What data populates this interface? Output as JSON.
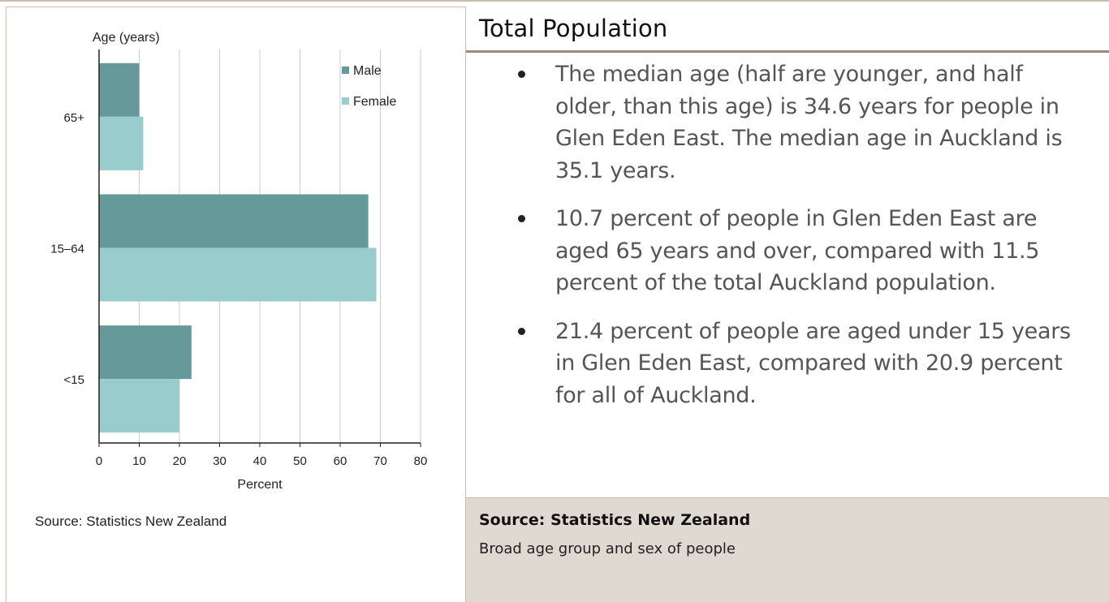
{
  "chart_data": {
    "type": "bar",
    "orientation": "horizontal",
    "categories": [
      "65+",
      "15–64",
      "<15"
    ],
    "series": [
      {
        "name": "Male",
        "values": [
          10,
          67,
          23
        ],
        "color": "#669999"
      },
      {
        "name": "Female",
        "values": [
          11,
          69,
          20
        ],
        "color": "#99cccc"
      }
    ],
    "ylabel": "Age (years)",
    "xlabel": "Percent",
    "xlim": [
      0,
      80
    ],
    "xticks": [
      0,
      10,
      20,
      30,
      40,
      50,
      60,
      70,
      80
    ],
    "grid": true,
    "legend_position": "top-right",
    "source": "Source: Statistics New Zealand"
  },
  "panel": {
    "title": "Total Population",
    "bullets": [
      "The median age (half are younger, and half older, than this age) is 34.6 years for people in Glen Eden East. The median age in Auckland is 35.1 years.",
      "10.7 percent of people in Glen Eden East are aged 65 years and over, compared with 11.5 percent of the total Auckland population.",
      "21.4 percent of people are aged under 15 years in Glen Eden East, compared with 20.9 percent for all of Auckland."
    ],
    "source_label": "Source: Statistics New Zealand",
    "source_desc": "Broad age group and sex of people"
  }
}
